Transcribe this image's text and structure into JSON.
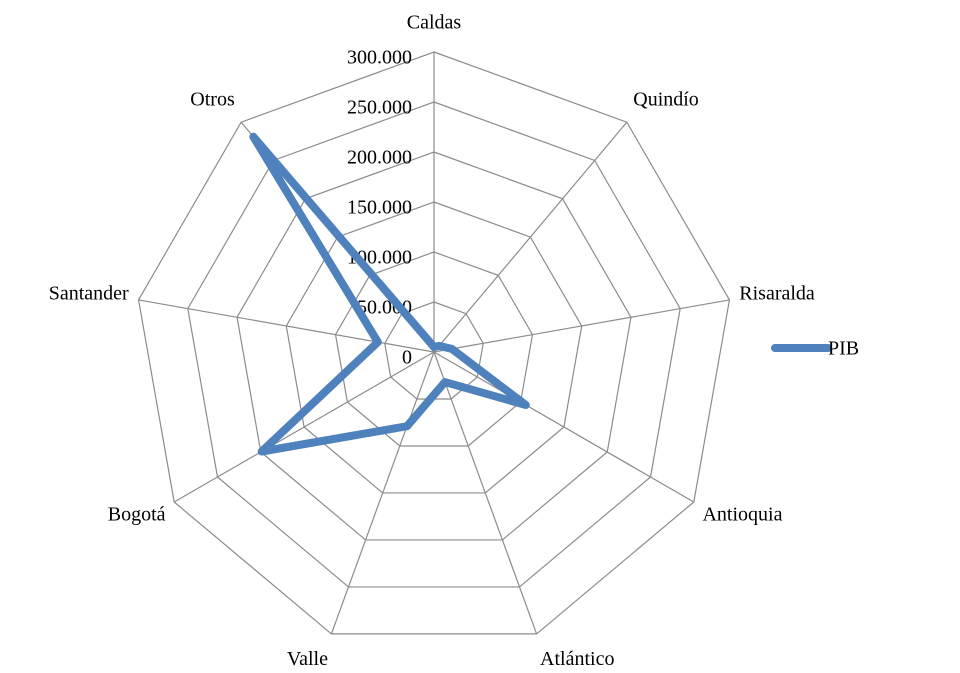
{
  "chart_data": {
    "type": "radar",
    "categories": [
      "Caldas",
      "Quindío",
      "Risaralda",
      "Antioquia",
      "Atlántico",
      "Valle",
      "Bogotá",
      "Santander",
      "Otros"
    ],
    "series": [
      {
        "name": "PIB",
        "color": "#4f81bd",
        "values": [
          5000,
          8000,
          18000,
          106000,
          32000,
          79000,
          199000,
          57000,
          281000
        ]
      }
    ],
    "ylim": [
      0,
      300000
    ],
    "yticks": [
      0,
      {
        "value": 50000,
        "label": "50.000"
      },
      {
        "value": 100000,
        "label": "100.000"
      },
      {
        "value": 150000,
        "label": "150.000"
      },
      {
        "value": 200000,
        "label": "200.000"
      },
      {
        "value": 250000,
        "label": "250.000"
      },
      {
        "value": 300000,
        "label": "300.000"
      }
    ],
    "grid": true,
    "legend": "right"
  }
}
